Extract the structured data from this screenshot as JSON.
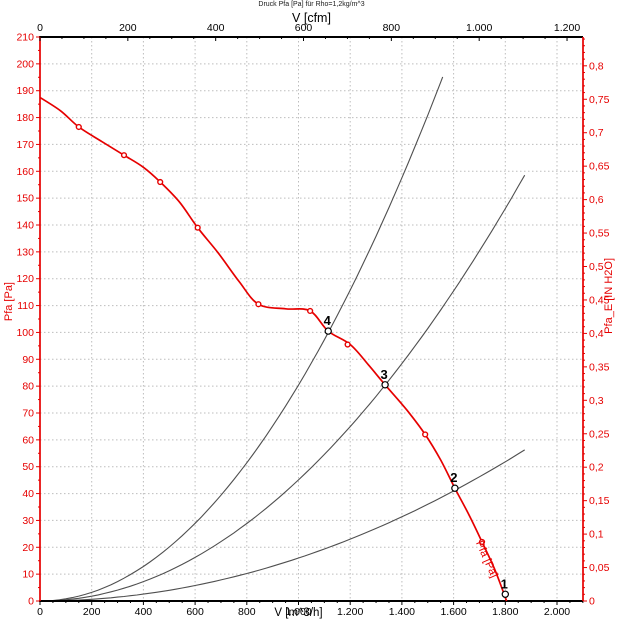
{
  "page": {
    "background": "#ffffff"
  },
  "chart_data": {
    "type": "line",
    "title": "Druck Pfa [Pa] für Rho=1,2kg/m^3",
    "axes": {
      "bottom": {
        "label": "V [m^3/h]",
        "min": 0,
        "max": 2100,
        "major_step": 200,
        "minor_step": 50,
        "max_label": 2000,
        "color": "#000000"
      },
      "top": {
        "label": "V [cfm]",
        "min": 0,
        "max": 1236,
        "major_step": 200,
        "minor_step": 50,
        "max_label": 1200,
        "color": "#000000",
        "cfm_per_m3h": 0.588578
      },
      "left": {
        "label": "Pfa [Pa]",
        "min": 0,
        "max": 210,
        "major_step": 10,
        "minor_step": 5,
        "color": "#e60000"
      },
      "right": {
        "label": "Pfa_E [IN H2O]",
        "min": 0,
        "max": 0.84,
        "major_step": 0.05,
        "minor_step": 0.01,
        "max_label": 0.8,
        "color": "#e60000",
        "pa_per_unit": 249.089
      }
    },
    "grid": {
      "v_step": 200,
      "h_step": 10,
      "color": "#bdbdbd"
    },
    "fan_curve": {
      "label": "Pfa [Pa]",
      "color": "#e60000",
      "points": [
        [
          0,
          187.5
        ],
        [
          80,
          182.5
        ],
        [
          150,
          176.5
        ],
        [
          240,
          171
        ],
        [
          325,
          166
        ],
        [
          400,
          161.5
        ],
        [
          465,
          156
        ],
        [
          540,
          148.5
        ],
        [
          610,
          139
        ],
        [
          690,
          129.5
        ],
        [
          770,
          119
        ],
        [
          845,
          110.5
        ],
        [
          950,
          108.8
        ],
        [
          1045,
          108
        ],
        [
          1115,
          100.5
        ],
        [
          1200,
          95.5
        ],
        [
          1270,
          88
        ],
        [
          1335,
          80.5
        ],
        [
          1420,
          71
        ],
        [
          1490,
          62
        ],
        [
          1550,
          52.5
        ],
        [
          1605,
          42
        ],
        [
          1660,
          32
        ],
        [
          1710,
          22
        ],
        [
          1760,
          11.5
        ],
        [
          1805,
          0
        ]
      ]
    },
    "measured_points": [
      [
        150,
        176.5
      ],
      [
        325,
        166
      ],
      [
        465,
        156
      ],
      [
        610,
        139
      ],
      [
        845,
        110.5
      ],
      [
        1045,
        108
      ],
      [
        1190,
        95.5
      ],
      [
        1490,
        62
      ],
      [
        1710,
        22
      ]
    ],
    "system_curves": {
      "color": "#4f4f4f",
      "curves": [
        {
          "k": 8.04e-05,
          "v_end": 1558
        },
        {
          "k": 4.51e-05,
          "v_end": 1875
        },
        {
          "k": 1.6e-05,
          "v_end": 1875
        }
      ]
    },
    "operating_points": [
      {
        "label": "1",
        "v": 1800,
        "p": 2.5
      },
      {
        "label": "2",
        "v": 1605,
        "p": 42
      },
      {
        "label": "3",
        "v": 1335,
        "p": 80.5
      },
      {
        "label": "4",
        "v": 1115,
        "p": 100.5
      }
    ]
  }
}
